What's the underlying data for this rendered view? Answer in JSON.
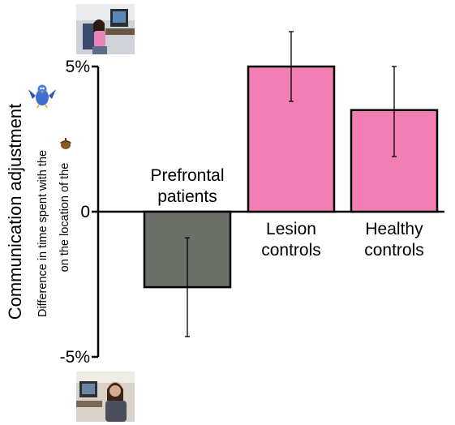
{
  "chart_data": {
    "type": "bar",
    "categories": [
      "Prefrontal patients",
      "Lesion controls",
      "Healthy controls"
    ],
    "category_lines": [
      [
        "Prefrontal",
        "patients"
      ],
      [
        "Lesion",
        "controls"
      ],
      [
        "Healthy",
        "controls"
      ]
    ],
    "values": [
      -2.6,
      5.0,
      3.5
    ],
    "error_low": [
      -4.3,
      3.8,
      1.9
    ],
    "error_high": [
      -0.9,
      6.2,
      5.0
    ],
    "colors": [
      "#6b7068",
      "#f17fb3",
      "#f17fb3"
    ],
    "ylim": [
      -5,
      5
    ],
    "yticks": [
      {
        "value": 5,
        "label": "5%"
      },
      {
        "value": 0,
        "label": "0"
      },
      {
        "value": -5,
        "label": "-5%"
      }
    ],
    "ylabel": "Communication adjustment",
    "ylabel_sub_1": "Difference in time spent with the",
    "ylabel_sub_2": "on the location of the",
    "grid": false
  },
  "icons": {
    "top_photo": "child-at-computer-photo",
    "bottom_photo": "woman-at-computer-photo",
    "bird": "blue-bird-icon",
    "acorn": "acorn-icon"
  }
}
